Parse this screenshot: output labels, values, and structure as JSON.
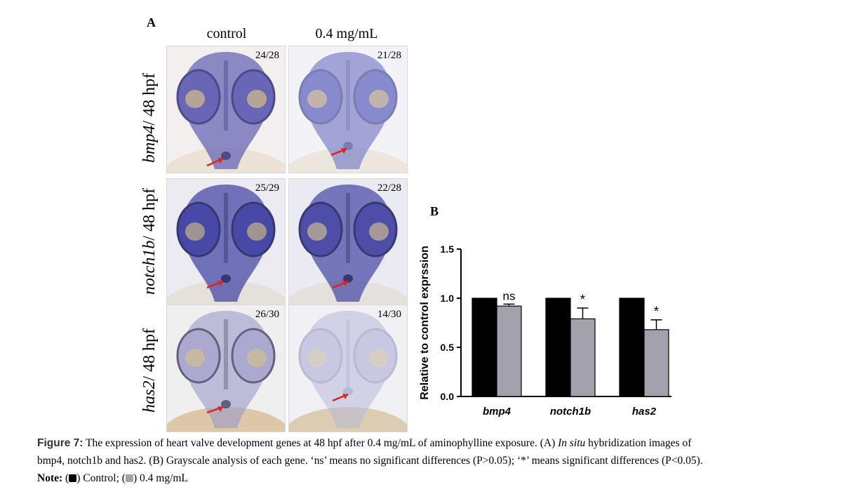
{
  "panel_a": {
    "letter": "A",
    "columns": [
      "control",
      "0.4 mg/mL"
    ],
    "rows": [
      {
        "gene": "bmp4",
        "suffix": "/ 48 hpf",
        "counts": [
          "24/28",
          "21/28"
        ]
      },
      {
        "gene": "notch1b",
        "suffix": "/ 48 hpf",
        "counts": [
          "25/29",
          "22/28"
        ]
      },
      {
        "gene": "has2",
        "suffix": "/ 48 hpf",
        "counts": [
          "26/30",
          "14/30"
        ]
      }
    ]
  },
  "panel_b": {
    "letter": "B"
  },
  "chart_data": {
    "type": "bar",
    "title": "",
    "xlabel": "",
    "ylabel": "Relative to control exprssion",
    "ylim": [
      0,
      1.5
    ],
    "yticks": [
      "0.0",
      "0.5",
      "1.0",
      "1.5"
    ],
    "categories": [
      "bmp4",
      "notch1b",
      "has2"
    ],
    "series": [
      {
        "color": "#000000",
        "values": [
          1.0,
          1.0,
          1.0
        ]
      },
      {
        "color": "#a3a1ab",
        "values": [
          0.92,
          0.79,
          0.68
        ],
        "errors": [
          0.02,
          0.11,
          0.1
        ]
      }
    ],
    "annotations": [
      "ns",
      "*",
      "*"
    ]
  },
  "caption": {
    "label": "Figure 7:",
    "line1": "The expression of heart valve development genes at 48 hpf after 0.4 mg/mL of aminophylline exposure. (A) ",
    "line1_italic": "In situ",
    "line1_end": " hybridization images of",
    "line2": "bmp4, notch1b and has2. (B) Grayscale analysis of each gene. ‘ns’ means no significant differences (P>0.05); ‘*’ means significant differences (P<0.05).",
    "note_label": "Note:",
    "note_control": "Control;",
    "note_treat": "0.4 mg/mL"
  }
}
